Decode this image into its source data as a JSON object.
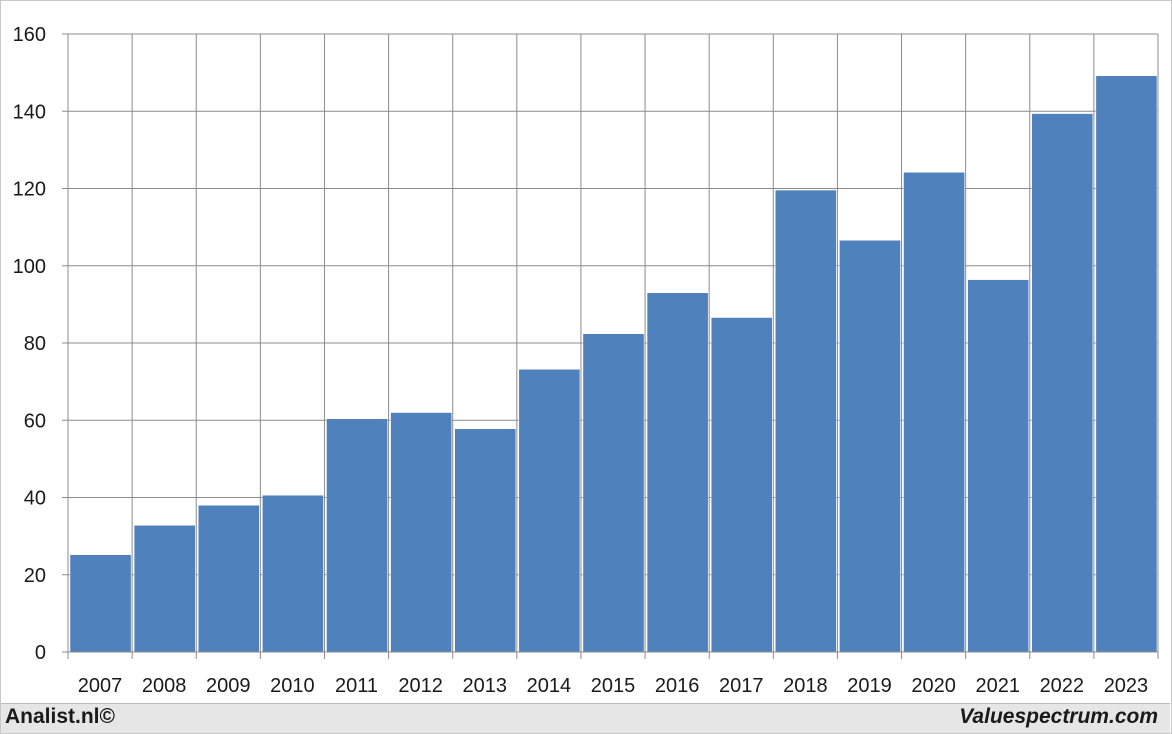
{
  "chart_data": {
    "type": "bar",
    "categories": [
      "2007",
      "2008",
      "2009",
      "2010",
      "2011",
      "2012",
      "2013",
      "2014",
      "2015",
      "2016",
      "2017",
      "2018",
      "2019",
      "2020",
      "2021",
      "2022",
      "2023"
    ],
    "values": [
      25.2,
      32.8,
      38.0,
      40.6,
      60.4,
      62.0,
      57.8,
      73.2,
      82.4,
      93.0,
      86.6,
      119.6,
      106.6,
      124.2,
      96.4,
      139.4,
      149.2
    ],
    "title": "",
    "xlabel": "",
    "ylabel": "",
    "ylim": [
      0,
      160
    ],
    "yticks": [
      0,
      20,
      40,
      60,
      80,
      100,
      120,
      140,
      160
    ],
    "grid": true,
    "legend": "none",
    "bar_color": "#4f81bd"
  },
  "footer": {
    "left_credit": "Analist.nl©",
    "right_credit": "Valuespectrum.com"
  }
}
